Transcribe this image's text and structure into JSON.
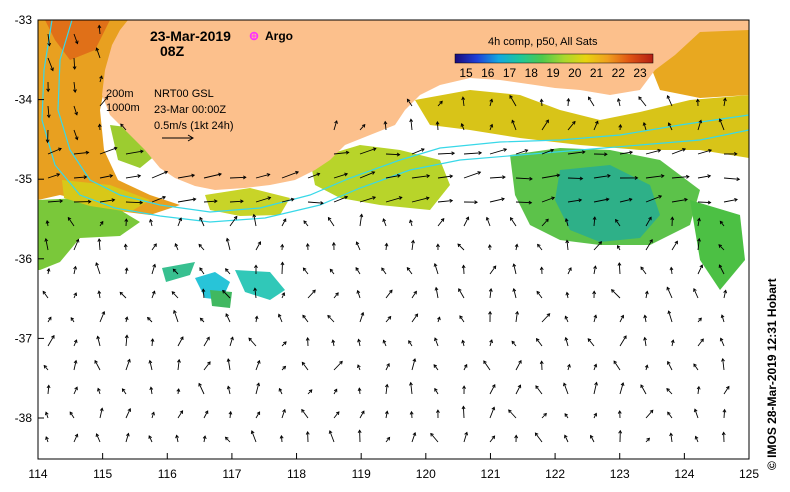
{
  "title": {
    "date": "23-Mar-2019",
    "time": "08Z",
    "argo_label": "Argo"
  },
  "info": {
    "depth_200": "200m",
    "depth_1000": "1000m",
    "model": "NRT00 GSL",
    "model_time": "23-Mar 00:00Z",
    "scale": "0.5m/s (1kt 24h)"
  },
  "colorbar": {
    "title": "4h comp, p50, All Sats",
    "ticks": [
      "15",
      "16",
      "17",
      "18",
      "19",
      "20",
      "21",
      "22",
      "23"
    ],
    "stops": [
      "#1a0b7a",
      "#1f3fd8",
      "#14a8e0",
      "#1ec79a",
      "#4fc94c",
      "#a8d82e",
      "#e8d410",
      "#f0a01e",
      "#e05514",
      "#b41e14"
    ]
  },
  "axes": {
    "x_ticks": [
      "114",
      "115",
      "116",
      "117",
      "118",
      "119",
      "120",
      "121",
      "122",
      "123",
      "124",
      "125"
    ],
    "y_ticks": [
      "-33",
      "-34",
      "-35",
      "-36",
      "-37",
      "-38"
    ]
  },
  "credit": "© IMOS 28-Mar-2019 12:31 Hobart",
  "colors": {
    "land": "#fcc08c",
    "vector": "#000000",
    "contour": "#38d8e8",
    "argo": "#ff30ff"
  }
}
